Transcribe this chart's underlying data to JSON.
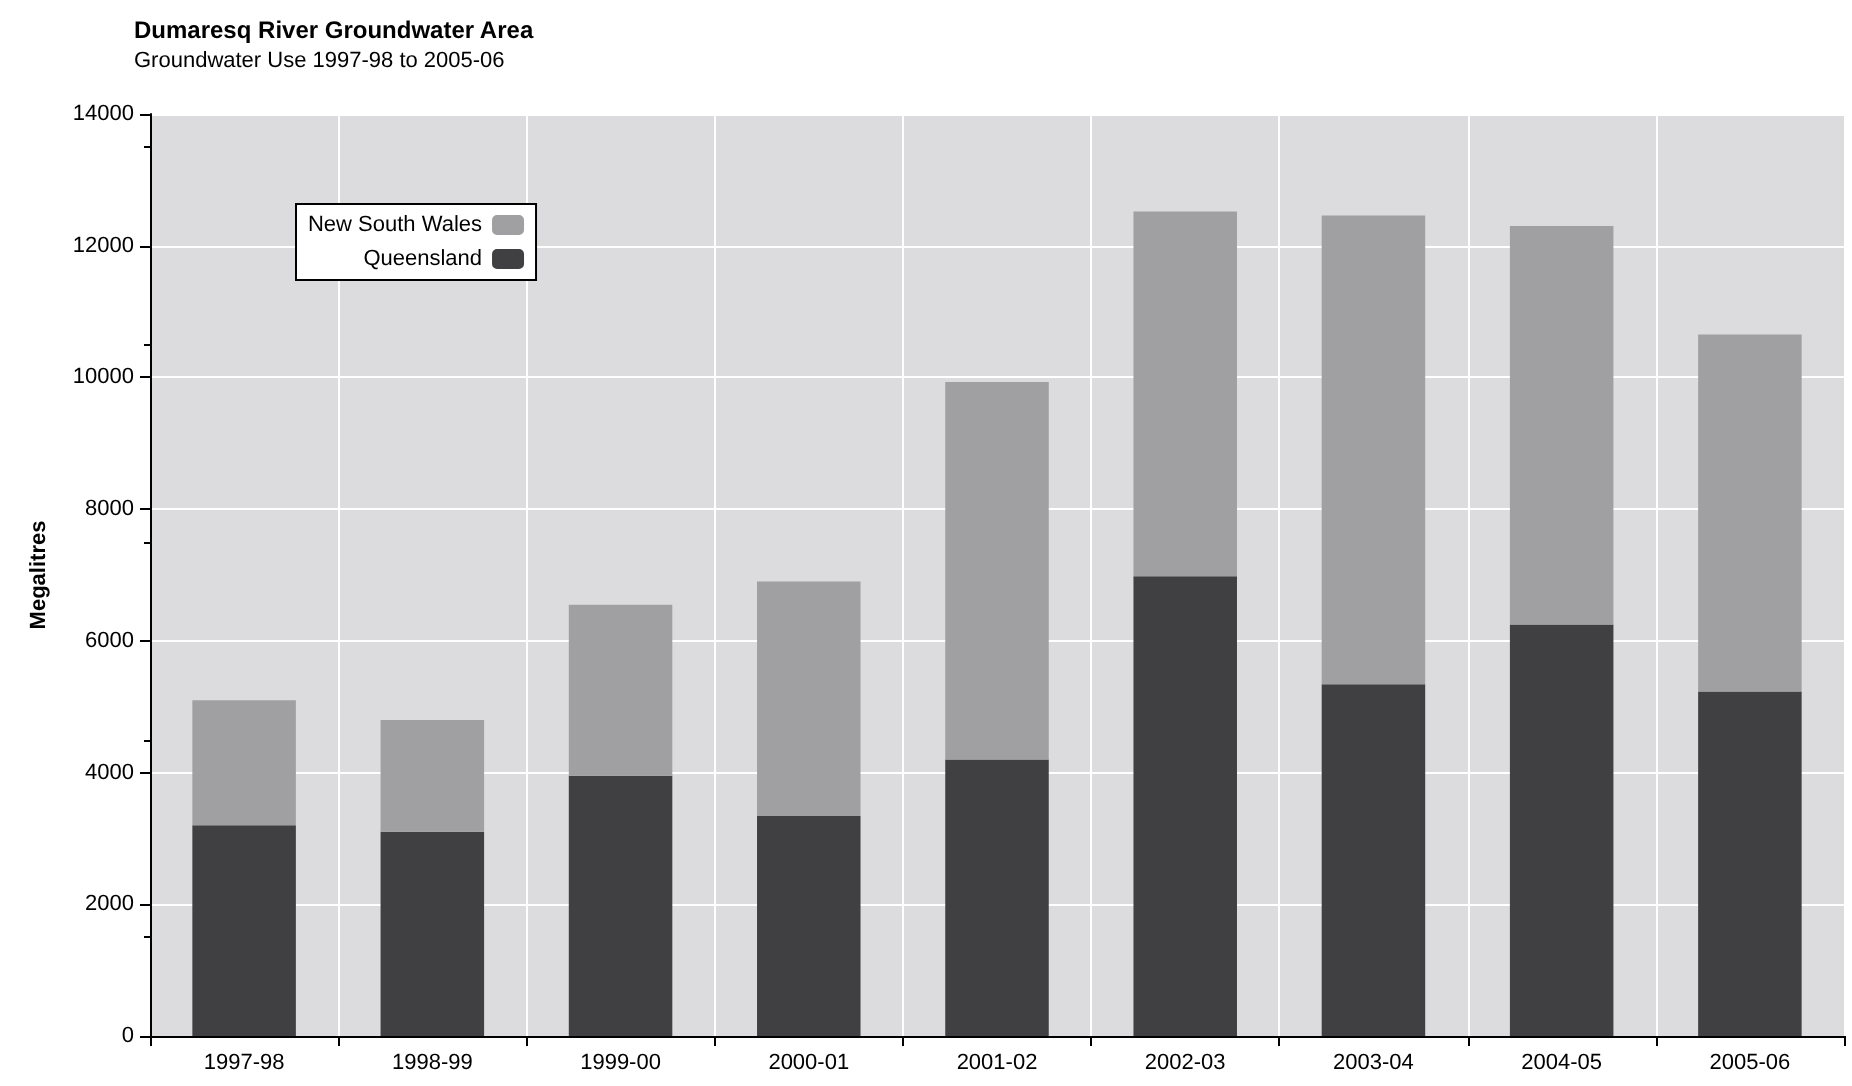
{
  "chart_data": {
    "type": "bar",
    "title": "Dumaresq River Groundwater Area",
    "subtitle": "Groundwater Use 1997-98 to 2005-06",
    "ylabel": "Megalitres",
    "categories": [
      "1997-98",
      "1998-99",
      "1999-00",
      "2000-01",
      "2001-02",
      "2002-03",
      "2003-04",
      "2004-05",
      "2005-06"
    ],
    "stacked": true,
    "series": [
      {
        "name": "Queensland",
        "color": "#404042",
        "values": [
          3200,
          3100,
          3950,
          3340,
          4200,
          6980,
          5340,
          6250,
          5230
        ]
      },
      {
        "name": "New South Wales",
        "color": "#a0a0a3",
        "values": [
          1900,
          1700,
          2600,
          3560,
          5730,
          5540,
          7120,
          6050,
          5420
        ]
      }
    ],
    "ylim": [
      0,
      14000
    ],
    "yticks": [
      0,
      2000,
      4000,
      6000,
      8000,
      10000,
      12000,
      14000
    ],
    "grid": true,
    "legend": "top left"
  }
}
